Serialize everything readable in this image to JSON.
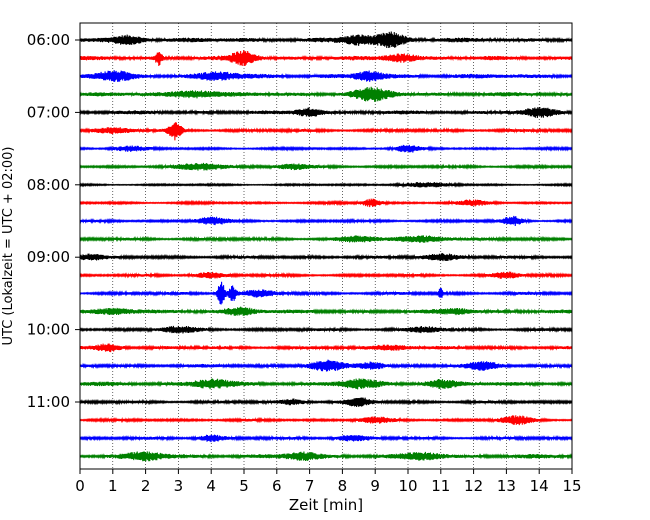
{
  "chart_data": {
    "type": "line",
    "title": "",
    "xlabel": "Zeit  [min]",
    "ylabel": "UTC (Lokalzeit = UTC + 02:00)",
    "xlim": [
      0,
      15
    ],
    "x_ticks": [
      0,
      1,
      2,
      3,
      4,
      5,
      6,
      7,
      8,
      9,
      10,
      11,
      12,
      13,
      14,
      15
    ],
    "x_tick_labels": [
      "0",
      "1",
      "2",
      "3",
      "4",
      "5",
      "6",
      "7",
      "8",
      "9",
      "10",
      "11",
      "12",
      "13",
      "14",
      "15"
    ],
    "y_tick_labels": [
      "06:00",
      "07:00",
      "08:00",
      "09:00",
      "10:00",
      "11:00"
    ],
    "y_tick_rows": [
      0,
      4,
      8,
      12,
      16,
      20
    ],
    "grid": "vertical dotted",
    "legend": "none",
    "colors_cycle": [
      "#000000",
      "#ff0000",
      "#0000ff",
      "#008000"
    ],
    "rows": [
      {
        "start": "06:00",
        "color": "#000000",
        "base_amp": 0.22,
        "events": [
          {
            "t": 9.5,
            "amp": 0.8,
            "width": 0.45
          },
          {
            "t": 1.5,
            "amp": 0.45,
            "width": 0.5
          },
          {
            "t": 8.5,
            "amp": 0.5,
            "width": 0.5
          }
        ]
      },
      {
        "start": "06:15",
        "color": "#ff0000",
        "base_amp": 0.2,
        "events": [
          {
            "t": 2.4,
            "amp": 0.8,
            "width": 0.1
          },
          {
            "t": 5.0,
            "amp": 0.75,
            "width": 0.4
          },
          {
            "t": 9.8,
            "amp": 0.45,
            "width": 0.5
          }
        ]
      },
      {
        "start": "06:30",
        "color": "#0000ff",
        "base_amp": 0.22,
        "events": [
          {
            "t": 1.0,
            "amp": 0.45,
            "width": 0.6
          },
          {
            "t": 8.8,
            "amp": 0.5,
            "width": 0.4
          },
          {
            "t": 4.2,
            "amp": 0.4,
            "width": 0.6
          }
        ]
      },
      {
        "start": "06:45",
        "color": "#008000",
        "base_amp": 0.2,
        "events": [
          {
            "t": 8.9,
            "amp": 0.65,
            "width": 0.6
          },
          {
            "t": 3.5,
            "amp": 0.4,
            "width": 0.7
          }
        ]
      },
      {
        "start": "07:00",
        "color": "#000000",
        "base_amp": 0.18,
        "events": [
          {
            "t": 7.0,
            "amp": 0.5,
            "width": 0.4
          },
          {
            "t": 14.0,
            "amp": 0.45,
            "width": 0.5
          }
        ]
      },
      {
        "start": "07:15",
        "color": "#ff0000",
        "base_amp": 0.14,
        "events": [
          {
            "t": 2.9,
            "amp": 1.0,
            "width": 0.2
          },
          {
            "t": 1.0,
            "amp": 0.3,
            "width": 0.6
          }
        ]
      },
      {
        "start": "07:30",
        "color": "#0000ff",
        "base_amp": 0.1,
        "events": [
          {
            "t": 10.0,
            "amp": 0.4,
            "width": 0.4
          },
          {
            "t": 1.5,
            "amp": 0.3,
            "width": 0.5
          }
        ]
      },
      {
        "start": "07:45",
        "color": "#008000",
        "base_amp": 0.12,
        "events": [
          {
            "t": 3.8,
            "amp": 0.35,
            "width": 0.8
          },
          {
            "t": 6.5,
            "amp": 0.3,
            "width": 0.5
          }
        ]
      },
      {
        "start": "08:00",
        "color": "#000000",
        "base_amp": 0.08,
        "events": [
          {
            "t": 10.5,
            "amp": 0.25,
            "width": 0.8
          }
        ]
      },
      {
        "start": "08:15",
        "color": "#ff0000",
        "base_amp": 0.1,
        "events": [
          {
            "t": 8.9,
            "amp": 0.45,
            "width": 0.3
          },
          {
            "t": 12.0,
            "amp": 0.3,
            "width": 0.5
          }
        ]
      },
      {
        "start": "08:30",
        "color": "#0000ff",
        "base_amp": 0.12,
        "events": [
          {
            "t": 4.0,
            "amp": 0.4,
            "width": 0.5
          },
          {
            "t": 13.2,
            "amp": 0.5,
            "width": 0.3
          }
        ]
      },
      {
        "start": "08:45",
        "color": "#008000",
        "base_amp": 0.14,
        "events": [
          {
            "t": 10.5,
            "amp": 0.35,
            "width": 0.8
          },
          {
            "t": 8.5,
            "amp": 0.3,
            "width": 0.6
          }
        ]
      },
      {
        "start": "09:00",
        "color": "#000000",
        "base_amp": 0.14,
        "events": [
          {
            "t": 11.0,
            "amp": 0.35,
            "width": 0.6
          },
          {
            "t": 0.3,
            "amp": 0.3,
            "width": 0.4
          }
        ]
      },
      {
        "start": "09:15",
        "color": "#ff0000",
        "base_amp": 0.12,
        "events": [
          {
            "t": 13.0,
            "amp": 0.35,
            "width": 0.4
          },
          {
            "t": 4.0,
            "amp": 0.3,
            "width": 0.5
          }
        ]
      },
      {
        "start": "09:30",
        "color": "#0000ff",
        "base_amp": 0.14,
        "events": [
          {
            "t": 4.3,
            "amp": 1.4,
            "width": 0.12
          },
          {
            "t": 4.65,
            "amp": 0.9,
            "width": 0.12
          },
          {
            "t": 11.0,
            "amp": 0.8,
            "width": 0.06
          },
          {
            "t": 5.5,
            "amp": 0.35,
            "width": 0.5
          }
        ]
      },
      {
        "start": "09:45",
        "color": "#008000",
        "base_amp": 0.18,
        "events": [
          {
            "t": 4.9,
            "amp": 0.45,
            "width": 0.5
          },
          {
            "t": 1.0,
            "amp": 0.35,
            "width": 0.6
          },
          {
            "t": 11.5,
            "amp": 0.3,
            "width": 0.5
          }
        ]
      },
      {
        "start": "10:00",
        "color": "#000000",
        "base_amp": 0.14,
        "events": [
          {
            "t": 3.0,
            "amp": 0.3,
            "width": 0.6
          },
          {
            "t": 10.5,
            "amp": 0.3,
            "width": 0.5
          }
        ]
      },
      {
        "start": "10:15",
        "color": "#ff0000",
        "base_amp": 0.16,
        "events": [
          {
            "t": 0.9,
            "amp": 0.4,
            "width": 0.4
          },
          {
            "t": 9.5,
            "amp": 0.3,
            "width": 0.6
          }
        ]
      },
      {
        "start": "10:30",
        "color": "#0000ff",
        "base_amp": 0.16,
        "events": [
          {
            "t": 7.5,
            "amp": 0.55,
            "width": 0.5
          },
          {
            "t": 8.9,
            "amp": 0.4,
            "width": 0.4
          },
          {
            "t": 12.3,
            "amp": 0.4,
            "width": 0.5
          }
        ]
      },
      {
        "start": "10:45",
        "color": "#008000",
        "base_amp": 0.2,
        "events": [
          {
            "t": 4.0,
            "amp": 0.45,
            "width": 0.6
          },
          {
            "t": 8.5,
            "amp": 0.45,
            "width": 0.6
          },
          {
            "t": 11.0,
            "amp": 0.4,
            "width": 0.5
          }
        ]
      },
      {
        "start": "11:00",
        "color": "#000000",
        "base_amp": 0.14,
        "events": [
          {
            "t": 8.5,
            "amp": 0.45,
            "width": 0.4
          },
          {
            "t": 6.5,
            "amp": 0.3,
            "width": 0.4
          }
        ]
      },
      {
        "start": "11:15",
        "color": "#ff0000",
        "base_amp": 0.12,
        "events": [
          {
            "t": 13.3,
            "amp": 0.45,
            "width": 0.5
          },
          {
            "t": 9.0,
            "amp": 0.3,
            "width": 0.5
          }
        ]
      },
      {
        "start": "11:30",
        "color": "#0000ff",
        "base_amp": 0.14,
        "events": [
          {
            "t": 4.0,
            "amp": 0.35,
            "width": 0.4
          },
          {
            "t": 8.3,
            "amp": 0.3,
            "width": 0.5
          }
        ]
      },
      {
        "start": "11:45",
        "color": "#008000",
        "base_amp": 0.2,
        "events": [
          {
            "t": 2.0,
            "amp": 0.4,
            "width": 0.6
          },
          {
            "t": 6.8,
            "amp": 0.4,
            "width": 0.5
          },
          {
            "t": 10.5,
            "amp": 0.35,
            "width": 0.6
          }
        ]
      }
    ]
  }
}
